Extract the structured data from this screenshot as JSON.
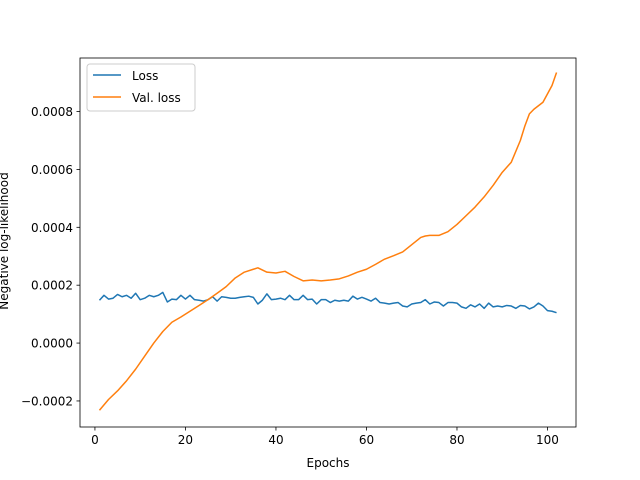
{
  "chart_data": {
    "type": "line",
    "title": "",
    "xlabel": "Epochs",
    "ylabel": "Negative log-likelihood",
    "xlim": [
      -3.3,
      106.3
    ],
    "ylim": [
      -0.00029,
      0.000985
    ],
    "xticks": [
      0,
      20,
      40,
      60,
      80,
      100
    ],
    "yticks": [
      -0.0002,
      0.0,
      0.0002,
      0.0004,
      0.0006,
      0.0008
    ],
    "ytick_labels": [
      "−0.0002",
      "0.0000",
      "0.0002",
      "0.0004",
      "0.0006",
      "0.0008"
    ],
    "grid": false,
    "legend_position": "top-left",
    "series": [
      {
        "name": "Loss",
        "color": "#1f77b4",
        "x": [
          1,
          2,
          3,
          4,
          5,
          6,
          7,
          8,
          9,
          10,
          11,
          12,
          13,
          14,
          15,
          16,
          17,
          18,
          19,
          20,
          21,
          22,
          23,
          24,
          25,
          26,
          27,
          28,
          29,
          30,
          31,
          32,
          33,
          34,
          35,
          36,
          37,
          38,
          39,
          40,
          41,
          42,
          43,
          44,
          45,
          46,
          47,
          48,
          49,
          50,
          51,
          52,
          53,
          54,
          55,
          56,
          57,
          58,
          59,
          60,
          61,
          62,
          63,
          64,
          65,
          66,
          67,
          68,
          69,
          70,
          71,
          72,
          73,
          74,
          75,
          76,
          77,
          78,
          79,
          80,
          81,
          82,
          83,
          84,
          85,
          86,
          87,
          88,
          89,
          90,
          91,
          92,
          93,
          94,
          95,
          96,
          97,
          98,
          99,
          100,
          101,
          102
        ],
        "y": [
          0.000148,
          0.000165,
          0.000152,
          0.000155,
          0.000168,
          0.00016,
          0.000165,
          0.000155,
          0.000172,
          0.00015,
          0.000155,
          0.000165,
          0.00016,
          0.000165,
          0.000175,
          0.000142,
          0.000152,
          0.00015,
          0.000165,
          0.000152,
          0.000165,
          0.00015,
          0.000148,
          0.000145,
          0.00015,
          0.00016,
          0.000145,
          0.00016,
          0.000158,
          0.000155,
          0.000155,
          0.000158,
          0.00016,
          0.000162,
          0.000158,
          0.000135,
          0.000148,
          0.00017,
          0.00015,
          0.000152,
          0.000155,
          0.00015,
          0.000165,
          0.00015,
          0.00015,
          0.000165,
          0.00015,
          0.000152,
          0.000135,
          0.00015,
          0.00015,
          0.00014,
          0.000148,
          0.000145,
          0.000148,
          0.000145,
          0.000162,
          0.000152,
          0.000158,
          0.000152,
          0.000145,
          0.000155,
          0.00014,
          0.000138,
          0.000135,
          0.000138,
          0.00014,
          0.000128,
          0.000125,
          0.000135,
          0.000138,
          0.00014,
          0.00015,
          0.000135,
          0.000142,
          0.00014,
          0.000128,
          0.00014,
          0.00014,
          0.000138,
          0.000125,
          0.00012,
          0.000132,
          0.000125,
          0.000135,
          0.00012,
          0.000138,
          0.000125,
          0.000128,
          0.000125,
          0.00013,
          0.000128,
          0.00012,
          0.00013,
          0.000128,
          0.000118,
          0.000125,
          0.000138,
          0.000128,
          0.000112,
          0.00011,
          0.000105
        ]
      },
      {
        "name": "Val. loss",
        "color": "#ff7f0e",
        "x": [
          1,
          3,
          5,
          7,
          9,
          11,
          13,
          15,
          17,
          19,
          21,
          23,
          25,
          27,
          29,
          31,
          33,
          35,
          36,
          38,
          40,
          42,
          44,
          46,
          48,
          50,
          52,
          54,
          56,
          58,
          60,
          62,
          64,
          66,
          68,
          70,
          72,
          73,
          74,
          76,
          78,
          80,
          82,
          84,
          86,
          88,
          90,
          92,
          94,
          95,
          96,
          97,
          99,
          101,
          102
        ],
        "y": [
          -0.000232,
          -0.000195,
          -0.000165,
          -0.00013,
          -9e-05,
          -4.5e-05,
          0.0,
          4e-05,
          7.2e-05,
          9e-05,
          0.00011,
          0.00013,
          0.00015,
          0.000172,
          0.000195,
          0.000225,
          0.000245,
          0.000255,
          0.00026,
          0.000245,
          0.000242,
          0.000248,
          0.00023,
          0.000215,
          0.000218,
          0.000215,
          0.000218,
          0.000222,
          0.000232,
          0.000245,
          0.000255,
          0.000272,
          0.00029,
          0.000302,
          0.000315,
          0.00034,
          0.000365,
          0.00037,
          0.000372,
          0.000372,
          0.000385,
          0.00041,
          0.00044,
          0.00047,
          0.000505,
          0.000545,
          0.00059,
          0.000625,
          0.0007,
          0.00075,
          0.000792,
          0.000808,
          0.000832,
          0.00089,
          0.000935
        ]
      }
    ]
  }
}
